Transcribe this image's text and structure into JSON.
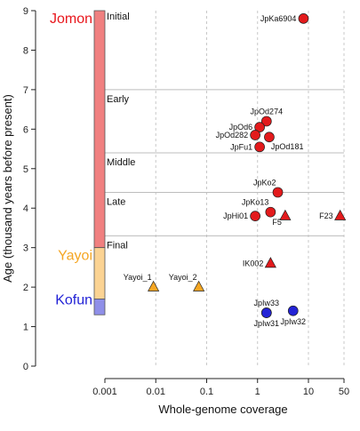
{
  "chart_data": {
    "type": "scatter",
    "xlabel": "Whole-genome coverage",
    "ylabel": "Age (thousand years before present)",
    "x_scale": "log",
    "xlim": [
      0.001,
      50
    ],
    "ylim": [
      0,
      9
    ],
    "x_ticks": [
      {
        "value": 0.001,
        "label": "0.001"
      },
      {
        "value": 0.01,
        "label": "0.01"
      },
      {
        "value": 0.1,
        "label": "0.1"
      },
      {
        "value": 1,
        "label": "1"
      },
      {
        "value": 10,
        "label": "10"
      },
      {
        "value": 50,
        "label": "50"
      }
    ],
    "y_ticks": [
      {
        "value": 0,
        "label": "0"
      },
      {
        "value": 1,
        "label": "1"
      },
      {
        "value": 2,
        "label": "2"
      },
      {
        "value": 3,
        "label": "3"
      },
      {
        "value": 4,
        "label": "4"
      },
      {
        "value": 5,
        "label": "5"
      },
      {
        "value": 6,
        "label": "6"
      },
      {
        "value": 7,
        "label": "7"
      },
      {
        "value": 8,
        "label": "8"
      },
      {
        "value": 9,
        "label": "9"
      }
    ],
    "grid": "vertical dashed",
    "periods": [
      {
        "name": "Jomon",
        "start": 3.0,
        "end": 9.0,
        "fill": "#f08080",
        "text_color": "#e8161c"
      },
      {
        "name": "Yayoi",
        "start": 1.7,
        "end": 3.0,
        "fill": "#fbd393",
        "text_color": "#f5a623"
      },
      {
        "name": "Kofun",
        "start": 1.3,
        "end": 1.7,
        "fill": "#8f8fe8",
        "text_color": "#2323d6"
      }
    ],
    "subperiods": [
      {
        "name": "Initial",
        "y": 9.0
      },
      {
        "name": "Early",
        "y": 7.0
      },
      {
        "name": "Middle",
        "y": 5.4
      },
      {
        "name": "Late",
        "y": 4.4
      },
      {
        "name": "Final",
        "y": 3.3
      }
    ],
    "boundary_lines": [
      7.0,
      5.4,
      4.4,
      3.3
    ],
    "series": [
      {
        "marker": "circle",
        "color": "#e31a1c",
        "points": [
          {
            "label": "JpKa6904",
            "x": 8.0,
            "y": 8.8,
            "label_pos": "left"
          },
          {
            "label": "JpOd274",
            "x": 1.5,
            "y": 6.2,
            "label_pos": "above"
          },
          {
            "label": "JpOd6",
            "x": 1.1,
            "y": 6.05,
            "label_pos": "left"
          },
          {
            "label": "JpOd282",
            "x": 0.9,
            "y": 5.85,
            "label_pos": "left"
          },
          {
            "label": "JpOd181",
            "x": 1.7,
            "y": 5.8,
            "label_pos": "below-right"
          },
          {
            "label": "JpFu1",
            "x": 1.1,
            "y": 5.55,
            "label_pos": "left"
          },
          {
            "label": "JpKo2",
            "x": 2.5,
            "y": 4.4,
            "label_pos": "above-left"
          },
          {
            "label": "JpKo13",
            "x": 1.8,
            "y": 3.9,
            "label_pos": "above-left"
          },
          {
            "label": "JpHi01",
            "x": 0.9,
            "y": 3.8,
            "label_pos": "left"
          }
        ]
      },
      {
        "marker": "triangle",
        "color": "#e31a1c",
        "points": [
          {
            "label": "F5",
            "x": 3.5,
            "y": 3.8,
            "label_pos": "below-left"
          },
          {
            "label": "F23",
            "x": 42,
            "y": 3.8,
            "label_pos": "left"
          },
          {
            "label": "IK002",
            "x": 1.8,
            "y": 2.6,
            "label_pos": "left"
          }
        ]
      },
      {
        "marker": "triangle",
        "color": "#f5a623",
        "points": [
          {
            "label": "Yayoi_1",
            "x": 0.009,
            "y": 2.0,
            "label_pos": "above-left"
          },
          {
            "label": "Yayoi_2",
            "x": 0.07,
            "y": 2.0,
            "label_pos": "above-left"
          }
        ]
      },
      {
        "marker": "circle",
        "color": "#2323d6",
        "points": [
          {
            "label": "JpIw33",
            "x": 1.5,
            "y": 1.35,
            "label_pos": "above"
          },
          {
            "label": "JpIw31",
            "x": 1.5,
            "y": 1.35,
            "label_pos": "below"
          },
          {
            "label": "JpIw32",
            "x": 5.0,
            "y": 1.4,
            "label_pos": "below"
          }
        ]
      }
    ]
  }
}
